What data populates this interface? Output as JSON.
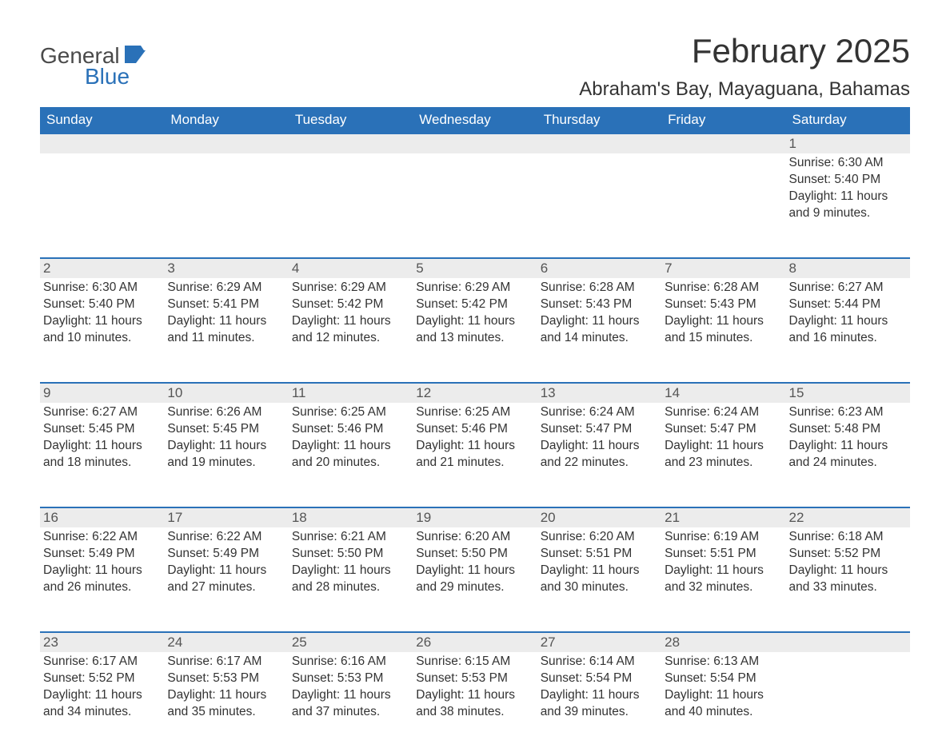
{
  "colors": {
    "accent": "#2a71b8",
    "row_bg": "#ececec",
    "text": "#333333",
    "muted_text": "#555555",
    "white": "#ffffff"
  },
  "typography": {
    "title_fontsize": 42,
    "location_fontsize": 24,
    "dow_fontsize": 17,
    "daynum_fontsize": 17,
    "body_fontsize": 15.5,
    "font_family": "Arial"
  },
  "logo": {
    "word1": "General",
    "word2": "Blue",
    "word1_color": "#4a4a4a",
    "word2_color": "#2a71b8",
    "icon_color": "#2a71b8"
  },
  "title": "February 2025",
  "location": "Abraham's Bay, Mayaguana, Bahamas",
  "days_of_week": [
    "Sunday",
    "Monday",
    "Tuesday",
    "Wednesday",
    "Thursday",
    "Friday",
    "Saturday"
  ],
  "calendar": {
    "type": "month-grid",
    "columns": 7,
    "rows": 5,
    "weeks": [
      [
        null,
        null,
        null,
        null,
        null,
        null,
        {
          "n": "1",
          "sunrise": "Sunrise: 6:30 AM",
          "sunset": "Sunset: 5:40 PM",
          "daylight": "Daylight: 11 hours and 9 minutes."
        }
      ],
      [
        {
          "n": "2",
          "sunrise": "Sunrise: 6:30 AM",
          "sunset": "Sunset: 5:40 PM",
          "daylight": "Daylight: 11 hours and 10 minutes."
        },
        {
          "n": "3",
          "sunrise": "Sunrise: 6:29 AM",
          "sunset": "Sunset: 5:41 PM",
          "daylight": "Daylight: 11 hours and 11 minutes."
        },
        {
          "n": "4",
          "sunrise": "Sunrise: 6:29 AM",
          "sunset": "Sunset: 5:42 PM",
          "daylight": "Daylight: 11 hours and 12 minutes."
        },
        {
          "n": "5",
          "sunrise": "Sunrise: 6:29 AM",
          "sunset": "Sunset: 5:42 PM",
          "daylight": "Daylight: 11 hours and 13 minutes."
        },
        {
          "n": "6",
          "sunrise": "Sunrise: 6:28 AM",
          "sunset": "Sunset: 5:43 PM",
          "daylight": "Daylight: 11 hours and 14 minutes."
        },
        {
          "n": "7",
          "sunrise": "Sunrise: 6:28 AM",
          "sunset": "Sunset: 5:43 PM",
          "daylight": "Daylight: 11 hours and 15 minutes."
        },
        {
          "n": "8",
          "sunrise": "Sunrise: 6:27 AM",
          "sunset": "Sunset: 5:44 PM",
          "daylight": "Daylight: 11 hours and 16 minutes."
        }
      ],
      [
        {
          "n": "9",
          "sunrise": "Sunrise: 6:27 AM",
          "sunset": "Sunset: 5:45 PM",
          "daylight": "Daylight: 11 hours and 18 minutes."
        },
        {
          "n": "10",
          "sunrise": "Sunrise: 6:26 AM",
          "sunset": "Sunset: 5:45 PM",
          "daylight": "Daylight: 11 hours and 19 minutes."
        },
        {
          "n": "11",
          "sunrise": "Sunrise: 6:25 AM",
          "sunset": "Sunset: 5:46 PM",
          "daylight": "Daylight: 11 hours and 20 minutes."
        },
        {
          "n": "12",
          "sunrise": "Sunrise: 6:25 AM",
          "sunset": "Sunset: 5:46 PM",
          "daylight": "Daylight: 11 hours and 21 minutes."
        },
        {
          "n": "13",
          "sunrise": "Sunrise: 6:24 AM",
          "sunset": "Sunset: 5:47 PM",
          "daylight": "Daylight: 11 hours and 22 minutes."
        },
        {
          "n": "14",
          "sunrise": "Sunrise: 6:24 AM",
          "sunset": "Sunset: 5:47 PM",
          "daylight": "Daylight: 11 hours and 23 minutes."
        },
        {
          "n": "15",
          "sunrise": "Sunrise: 6:23 AM",
          "sunset": "Sunset: 5:48 PM",
          "daylight": "Daylight: 11 hours and 24 minutes."
        }
      ],
      [
        {
          "n": "16",
          "sunrise": "Sunrise: 6:22 AM",
          "sunset": "Sunset: 5:49 PM",
          "daylight": "Daylight: 11 hours and 26 minutes."
        },
        {
          "n": "17",
          "sunrise": "Sunrise: 6:22 AM",
          "sunset": "Sunset: 5:49 PM",
          "daylight": "Daylight: 11 hours and 27 minutes."
        },
        {
          "n": "18",
          "sunrise": "Sunrise: 6:21 AM",
          "sunset": "Sunset: 5:50 PM",
          "daylight": "Daylight: 11 hours and 28 minutes."
        },
        {
          "n": "19",
          "sunrise": "Sunrise: 6:20 AM",
          "sunset": "Sunset: 5:50 PM",
          "daylight": "Daylight: 11 hours and 29 minutes."
        },
        {
          "n": "20",
          "sunrise": "Sunrise: 6:20 AM",
          "sunset": "Sunset: 5:51 PM",
          "daylight": "Daylight: 11 hours and 30 minutes."
        },
        {
          "n": "21",
          "sunrise": "Sunrise: 6:19 AM",
          "sunset": "Sunset: 5:51 PM",
          "daylight": "Daylight: 11 hours and 32 minutes."
        },
        {
          "n": "22",
          "sunrise": "Sunrise: 6:18 AM",
          "sunset": "Sunset: 5:52 PM",
          "daylight": "Daylight: 11 hours and 33 minutes."
        }
      ],
      [
        {
          "n": "23",
          "sunrise": "Sunrise: 6:17 AM",
          "sunset": "Sunset: 5:52 PM",
          "daylight": "Daylight: 11 hours and 34 minutes."
        },
        {
          "n": "24",
          "sunrise": "Sunrise: 6:17 AM",
          "sunset": "Sunset: 5:53 PM",
          "daylight": "Daylight: 11 hours and 35 minutes."
        },
        {
          "n": "25",
          "sunrise": "Sunrise: 6:16 AM",
          "sunset": "Sunset: 5:53 PM",
          "daylight": "Daylight: 11 hours and 37 minutes."
        },
        {
          "n": "26",
          "sunrise": "Sunrise: 6:15 AM",
          "sunset": "Sunset: 5:53 PM",
          "daylight": "Daylight: 11 hours and 38 minutes."
        },
        {
          "n": "27",
          "sunrise": "Sunrise: 6:14 AM",
          "sunset": "Sunset: 5:54 PM",
          "daylight": "Daylight: 11 hours and 39 minutes."
        },
        {
          "n": "28",
          "sunrise": "Sunrise: 6:13 AM",
          "sunset": "Sunset: 5:54 PM",
          "daylight": "Daylight: 11 hours and 40 minutes."
        },
        null
      ]
    ]
  }
}
